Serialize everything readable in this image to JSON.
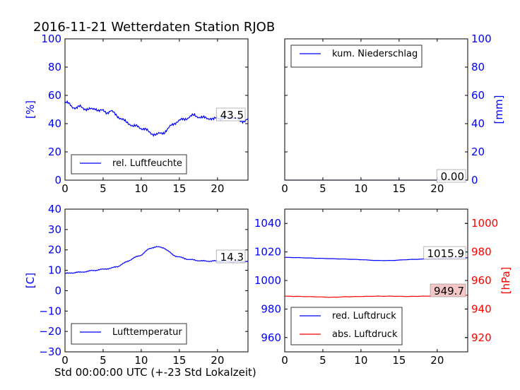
{
  "figure": {
    "title": "2016-11-21 Wetterdaten Station RJOB",
    "xlabel": "Std 00:00:00 UTC (+-23 Std Lokalzeit)"
  },
  "colors": {
    "blue": "#0000ff",
    "red": "#ff0000",
    "annot_red_bg": "#f4c6c6"
  },
  "chart_data": [
    {
      "type": "line",
      "id": "humidity",
      "ylabel": "[%]",
      "xlim": [
        0,
        24
      ],
      "ylim": [
        0,
        100
      ],
      "xticks": [
        0,
        5,
        10,
        15,
        20
      ],
      "yticks": [
        0,
        20,
        40,
        60,
        80,
        100
      ],
      "legend": "lower-left",
      "annotation": "43.5",
      "series": [
        {
          "name": "rel. Luftfeuchte",
          "color": "#0000ff",
          "x": [
            0,
            0.5,
            1,
            1.5,
            2,
            2.5,
            3,
            3.5,
            4,
            4.5,
            5,
            5.5,
            6,
            6.5,
            7,
            7.5,
            8,
            8.5,
            9,
            9.5,
            10,
            10.5,
            11,
            11.5,
            12,
            12.5,
            13,
            13.5,
            14,
            14.5,
            15,
            15.5,
            16,
            16.5,
            17,
            17.5,
            18,
            18.5,
            19,
            19.5,
            20,
            20.5,
            21,
            21.5,
            22,
            22.5,
            23,
            23.5,
            24
          ],
          "y": [
            55,
            54,
            52,
            51,
            52,
            51,
            50,
            50,
            51,
            49,
            49,
            48,
            49,
            47,
            45,
            43,
            41,
            40,
            38,
            38,
            37,
            36,
            34,
            33,
            32,
            33,
            34,
            36,
            39,
            41,
            42,
            43,
            44,
            45,
            46,
            45,
            44,
            44,
            44,
            43,
            44,
            44,
            44,
            44,
            45,
            43,
            42,
            42,
            43
          ]
        }
      ]
    },
    {
      "type": "line",
      "id": "precipitation",
      "ylabel": "[mm]",
      "xlim": [
        0,
        24
      ],
      "ylim": [
        0,
        100
      ],
      "xticks": [
        0,
        5,
        10,
        15,
        20
      ],
      "yticks": [
        0,
        20,
        40,
        60,
        80,
        100
      ],
      "legend": "top-left",
      "annotation": "0.00",
      "series": [
        {
          "name": "kum. Niederschlag",
          "color": "#0000ff",
          "x": [
            0,
            24
          ],
          "y": [
            0,
            0
          ]
        }
      ]
    },
    {
      "type": "line",
      "id": "temperature",
      "ylabel": "[C]",
      "xlim": [
        0,
        24
      ],
      "ylim": [
        -30,
        40
      ],
      "xticks": [
        0,
        5,
        10,
        15,
        20
      ],
      "yticks": [
        -30,
        -20,
        -10,
        0,
        10,
        20,
        30,
        40
      ],
      "legend": "lower-left",
      "annotation": "14.3",
      "series": [
        {
          "name": "Lufttemperatur",
          "color": "#0000ff",
          "x": [
            0,
            0.5,
            1,
            1.5,
            2,
            2.5,
            3,
            3.5,
            4,
            4.5,
            5,
            5.5,
            6,
            6.5,
            7,
            7.5,
            8,
            8.5,
            9,
            9.5,
            10,
            10.5,
            11,
            11.5,
            12,
            12.5,
            13,
            13.5,
            14,
            14.5,
            15,
            15.5,
            16,
            16.5,
            17,
            17.5,
            18,
            18.5,
            19,
            19.5,
            20,
            20.5,
            21,
            21.5,
            22,
            22.5,
            23,
            23.5,
            24
          ],
          "y": [
            8.5,
            8.5,
            8.8,
            9,
            9,
            9.3,
            9.5,
            9.8,
            10,
            10.3,
            10.5,
            10.8,
            11,
            11.5,
            12,
            13,
            14,
            15,
            16,
            16.8,
            17.5,
            19,
            20.5,
            21.2,
            21.5,
            21.3,
            21,
            19.5,
            18,
            17,
            16.5,
            16,
            15.5,
            15.2,
            15,
            14.8,
            14.6,
            14.5,
            14.5,
            14.6,
            14.5,
            14.4,
            14.4,
            14.3,
            14.2,
            14.3,
            14.2,
            14.3,
            14.3
          ]
        }
      ]
    },
    {
      "type": "line",
      "id": "pressure",
      "ylabel": "[hPa]",
      "xlim": [
        0,
        24
      ],
      "ylim": [
        950,
        1050
      ],
      "y2lim": [
        910,
        1010
      ],
      "xticks": [
        0,
        5,
        10,
        15,
        20
      ],
      "yticks": [
        960,
        980,
        1000,
        1020,
        1040
      ],
      "y2ticks": [
        920,
        940,
        960,
        980,
        1000
      ],
      "legend": "lower-left",
      "annotations": [
        "1015.9",
        "949.7"
      ],
      "series": [
        {
          "name": "red. Luftdruck",
          "color": "#0000ff",
          "axis": "left",
          "x": [
            0,
            2,
            4,
            6,
            8,
            10,
            12,
            14,
            16,
            18,
            20,
            22,
            24
          ],
          "y": [
            1016.2,
            1016.0,
            1015.6,
            1015.3,
            1015.0,
            1014.6,
            1014.0,
            1014.0,
            1014.6,
            1015.0,
            1015.4,
            1015.7,
            1015.9
          ]
        },
        {
          "name": "abs. Luftdruck",
          "color": "#ff0000",
          "axis": "right",
          "x": [
            0,
            2,
            4,
            6,
            8,
            10,
            12,
            14,
            16,
            18,
            20,
            22,
            24
          ],
          "y": [
            949.0,
            948.8,
            948.6,
            948.2,
            948.6,
            948.8,
            949.0,
            949.0,
            948.8,
            949.0,
            949.2,
            949.5,
            949.7
          ]
        }
      ]
    }
  ]
}
